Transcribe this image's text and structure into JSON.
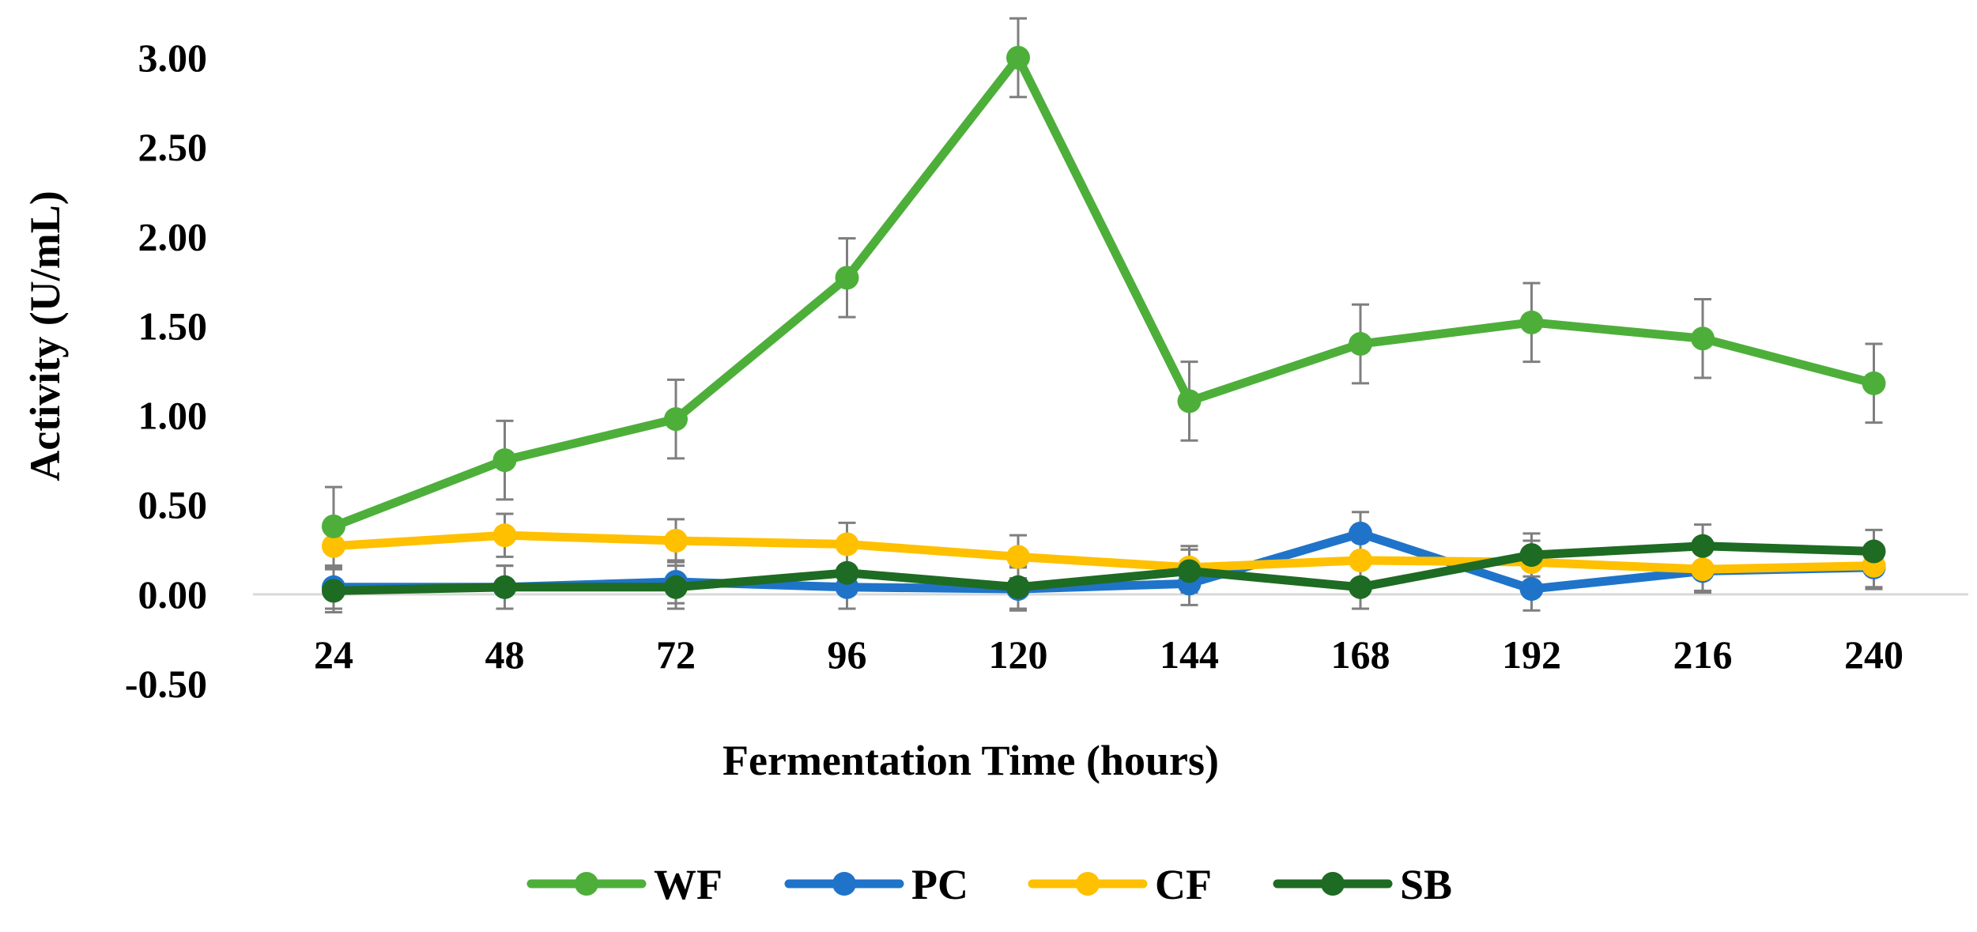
{
  "chart_data": {
    "type": "line",
    "title": "",
    "xlabel": "Fermentation Time (hours)",
    "ylabel": "Activity (U/mL)",
    "categories": [
      "24",
      "48",
      "72",
      "96",
      "120",
      "144",
      "168",
      "192",
      "216",
      "240"
    ],
    "ylim": [
      -0.5,
      3.0
    ],
    "yticks": [
      "-0.50",
      "0.00",
      "0.50",
      "1.00",
      "1.50",
      "2.00",
      "2.50",
      "3.00"
    ],
    "ytick_values": [
      -0.5,
      0,
      0.5,
      1.0,
      1.5,
      2.0,
      2.5,
      3.0
    ],
    "grid": false,
    "legend_position": "bottom",
    "series": [
      {
        "name": "WF",
        "color": "#4DAF3A",
        "values": [
          0.38,
          0.75,
          0.98,
          1.77,
          3.0,
          1.08,
          1.4,
          1.52,
          1.43,
          1.18
        ],
        "errors": [
          0.22,
          0.22,
          0.22,
          0.22,
          0.22,
          0.22,
          0.22,
          0.22,
          0.22,
          0.22
        ]
      },
      {
        "name": "PC",
        "color": "#1F74C9",
        "values": [
          0.04,
          0.04,
          0.07,
          0.04,
          0.03,
          0.06,
          0.34,
          0.03,
          0.13,
          0.15
        ],
        "errors": [
          0.12,
          0.12,
          0.12,
          0.12,
          0.12,
          0.12,
          0.12,
          0.12,
          0.12,
          0.12
        ]
      },
      {
        "name": "CF",
        "color": "#FFC000",
        "values": [
          0.27,
          0.33,
          0.3,
          0.28,
          0.21,
          0.15,
          0.19,
          0.18,
          0.14,
          0.16
        ],
        "errors": [
          0.12,
          0.12,
          0.12,
          0.12,
          0.12,
          0.12,
          0.12,
          0.12,
          0.12,
          0.12
        ]
      },
      {
        "name": "SB",
        "color": "#1E6B23",
        "values": [
          0.02,
          0.04,
          0.04,
          0.12,
          0.04,
          0.13,
          0.04,
          0.22,
          0.27,
          0.24
        ],
        "errors": [
          0.12,
          0.12,
          0.12,
          0.12,
          0.12,
          0.12,
          0.12,
          0.12,
          0.12,
          0.12
        ]
      }
    ]
  }
}
